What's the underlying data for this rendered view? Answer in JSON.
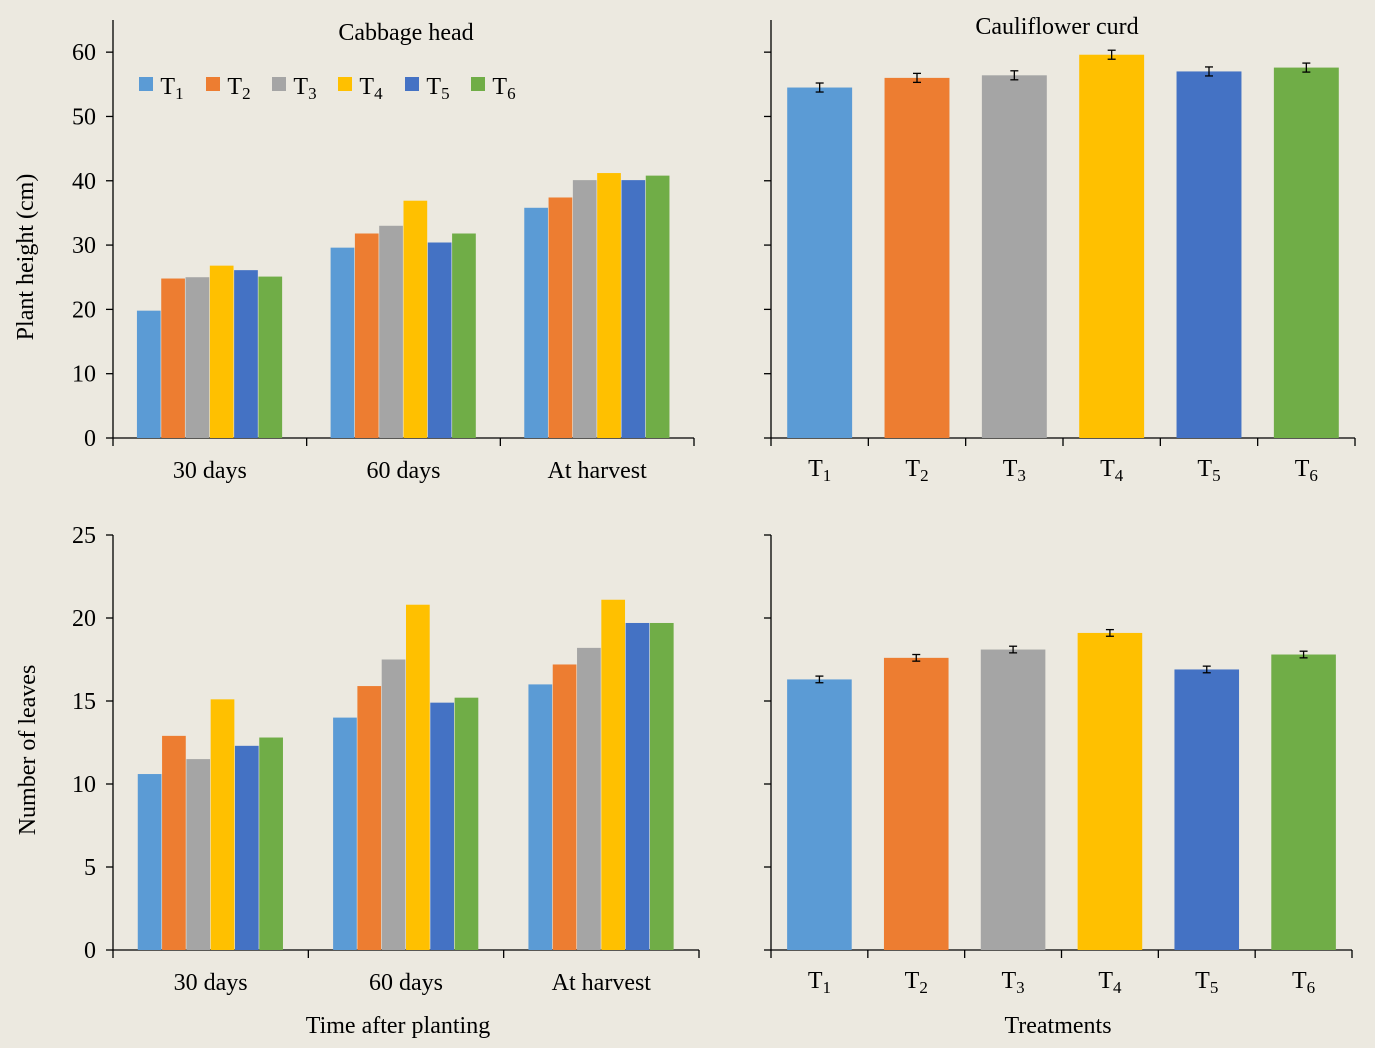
{
  "figure": {
    "background": "#ECE9E0",
    "series_colors": [
      "#5B9BD5",
      "#ED7D31",
      "#A5A5A5",
      "#FFC000",
      "#4472C4",
      "#70AD47"
    ],
    "series_labels": [
      "T1",
      "T2",
      "T3",
      "T4",
      "T5",
      "T6"
    ],
    "xlabel_left": "Time after planting",
    "xlabel_right": "Treatments"
  },
  "chart_data": [
    {
      "type": "bar",
      "title": "Cabbage head",
      "ylabel": "Plant height (cm)",
      "xlabel": "",
      "ylim": [
        0,
        65
      ],
      "yticks": [
        0,
        10,
        20,
        30,
        40,
        50,
        60
      ],
      "categories": [
        "30 days",
        "60 days",
        "At harvest"
      ],
      "legend": "top-left",
      "series": [
        {
          "name": "T1",
          "values": [
            19.8,
            29.6,
            35.8
          ]
        },
        {
          "name": "T2",
          "values": [
            24.8,
            31.8,
            37.4
          ]
        },
        {
          "name": "T3",
          "values": [
            25.0,
            33.0,
            40.1
          ]
        },
        {
          "name": "T4",
          "values": [
            26.8,
            36.9,
            41.2
          ]
        },
        {
          "name": "T5",
          "values": [
            26.1,
            30.4,
            40.1
          ]
        },
        {
          "name": "T6",
          "values": [
            25.1,
            31.8,
            40.8
          ]
        }
      ]
    },
    {
      "type": "bar",
      "title": "Cauliflower curd",
      "ylabel": "",
      "xlabel": "",
      "ylim": [
        0,
        65
      ],
      "categories": [
        "T1",
        "T2",
        "T3",
        "T4",
        "T5",
        "T6"
      ],
      "values": [
        54.5,
        56.0,
        56.4,
        59.6,
        57.0,
        57.6
      ],
      "errors": [
        0.7,
        0.7,
        0.7,
        0.7,
        0.7,
        0.7
      ]
    },
    {
      "type": "bar",
      "title": "",
      "ylabel": "Number of leaves",
      "xlabel": "Time after planting",
      "ylim": [
        0,
        25
      ],
      "yticks": [
        0,
        5,
        10,
        15,
        20,
        25
      ],
      "categories": [
        "30 days",
        "60 days",
        "At harvest"
      ],
      "series": [
        {
          "name": "T1",
          "values": [
            10.6,
            14.0,
            16.0
          ]
        },
        {
          "name": "T2",
          "values": [
            12.9,
            15.9,
            17.2
          ]
        },
        {
          "name": "T3",
          "values": [
            11.5,
            17.5,
            18.2
          ]
        },
        {
          "name": "T4",
          "values": [
            15.1,
            20.8,
            21.1
          ]
        },
        {
          "name": "T5",
          "values": [
            12.3,
            14.9,
            19.7
          ]
        },
        {
          "name": "T6",
          "values": [
            12.8,
            15.2,
            19.7
          ]
        }
      ]
    },
    {
      "type": "bar",
      "title": "",
      "ylabel": "",
      "xlabel": "Treatments",
      "ylim": [
        0,
        25
      ],
      "categories": [
        "T1",
        "T2",
        "T3",
        "T4",
        "T5",
        "T6"
      ],
      "values": [
        16.3,
        17.6,
        18.1,
        19.1,
        16.9,
        17.8
      ],
      "errors": [
        0.2,
        0.2,
        0.2,
        0.2,
        0.2,
        0.2
      ]
    }
  ]
}
